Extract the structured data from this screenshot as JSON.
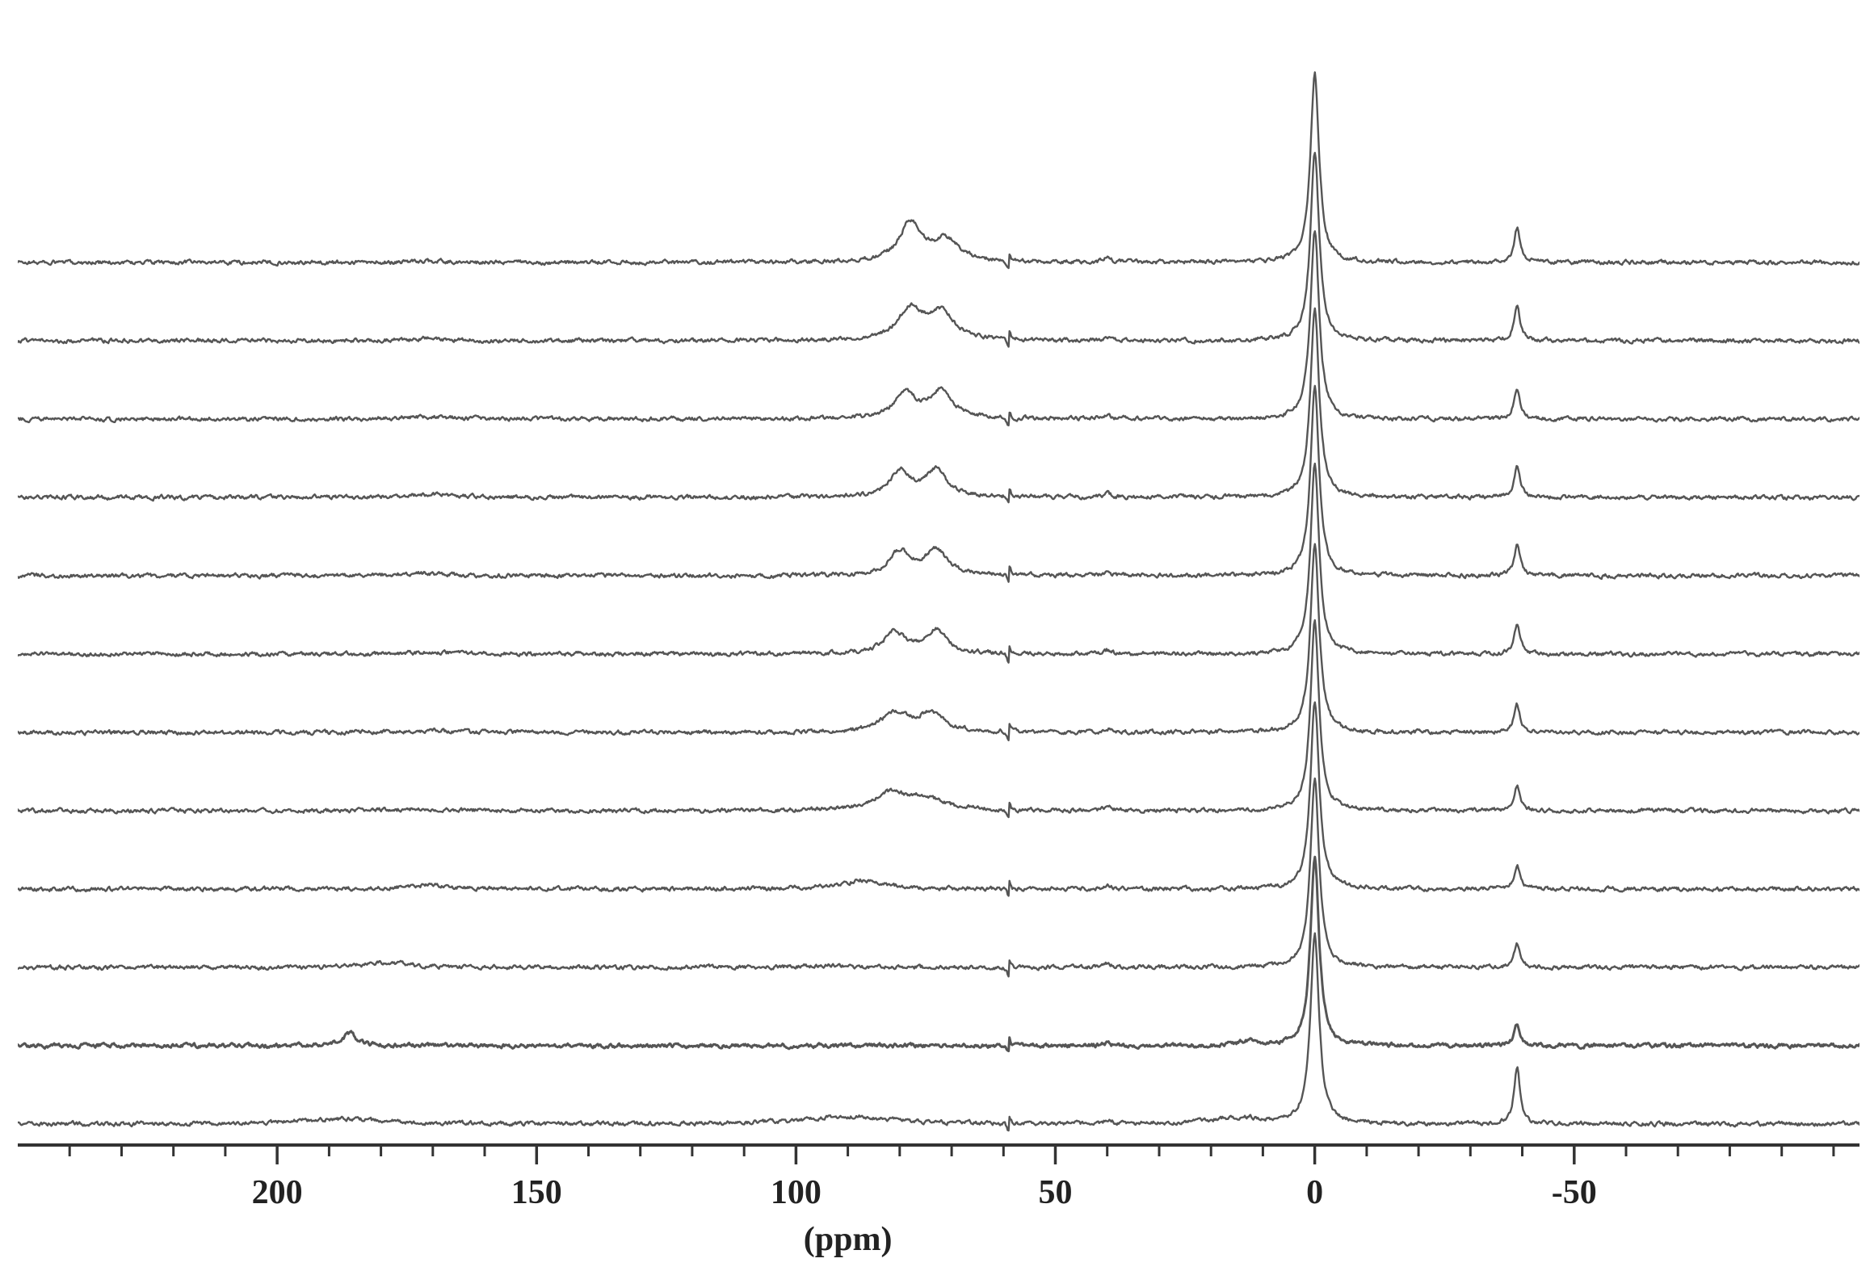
{
  "chart_data": {
    "type": "line",
    "title": "",
    "xlabel": "(ppm)",
    "ylabel": "",
    "xlim": [
      250,
      -105
    ],
    "x_reversed": true,
    "y_axis_visible": false,
    "grid": false,
    "legend": "none",
    "x_ticks": [
      {
        "value": 200,
        "label": "200"
      },
      {
        "value": 150,
        "label": "150"
      },
      {
        "value": 100,
        "label": "100"
      },
      {
        "value": 50,
        "label": "50"
      },
      {
        "value": 0,
        "label": "0"
      },
      {
        "value": -50,
        "label": "-50"
      }
    ],
    "minor_tick_step": 10,
    "reference_peaks_ppm": [
      0,
      -39,
      40,
      59
    ],
    "line_color": "#555555",
    "series": [
      {
        "peaks": [
          {
            "x": 0,
            "h": 3.0,
            "w": 1.0
          },
          {
            "x": -39,
            "h": 0.55,
            "w": 0.7
          },
          {
            "x": 78,
            "h": 0.62,
            "w": 2.5
          },
          {
            "x": 71,
            "h": 0.35,
            "w": 3.0
          },
          {
            "x": 171,
            "h": 0.02,
            "w": 4.0
          },
          {
            "x": 40,
            "h": 0.08,
            "w": 0.8
          }
        ]
      },
      {
        "peaks": [
          {
            "x": 0,
            "h": 3.0,
            "w": 1.0
          },
          {
            "x": -39,
            "h": 0.52,
            "w": 0.7
          },
          {
            "x": 78,
            "h": 0.48,
            "w": 3.0
          },
          {
            "x": 72,
            "h": 0.42,
            "w": 3.0
          },
          {
            "x": 171,
            "h": 0.03,
            "w": 5.0
          },
          {
            "x": 40,
            "h": 0.07,
            "w": 0.8
          }
        ]
      },
      {
        "peaks": [
          {
            "x": 0,
            "h": 3.0,
            "w": 1.0
          },
          {
            "x": -39,
            "h": 0.5,
            "w": 0.7
          },
          {
            "x": 79,
            "h": 0.42,
            "w": 2.5
          },
          {
            "x": 72,
            "h": 0.45,
            "w": 2.5
          },
          {
            "x": 172,
            "h": 0.04,
            "w": 5.0
          },
          {
            "x": 40,
            "h": 0.07,
            "w": 0.8
          }
        ]
      },
      {
        "peaks": [
          {
            "x": 0,
            "h": 3.0,
            "w": 1.0
          },
          {
            "x": -39,
            "h": 0.5,
            "w": 0.7
          },
          {
            "x": 80,
            "h": 0.4,
            "w": 2.5
          },
          {
            "x": 73,
            "h": 0.42,
            "w": 2.5
          },
          {
            "x": 170,
            "h": 0.05,
            "w": 5.0
          },
          {
            "x": 40,
            "h": 0.07,
            "w": 0.8
          }
        ]
      },
      {
        "peaks": [
          {
            "x": 0,
            "h": 3.0,
            "w": 1.0
          },
          {
            "x": -39,
            "h": 0.48,
            "w": 0.7
          },
          {
            "x": 80,
            "h": 0.38,
            "w": 2.5
          },
          {
            "x": 73,
            "h": 0.4,
            "w": 2.5
          },
          {
            "x": 172,
            "h": 0.04,
            "w": 5.0
          },
          {
            "x": 40,
            "h": 0.06,
            "w": 0.8
          }
        ]
      },
      {
        "peaks": [
          {
            "x": 0,
            "h": 3.0,
            "w": 1.0
          },
          {
            "x": -39,
            "h": 0.45,
            "w": 0.7
          },
          {
            "x": 81,
            "h": 0.35,
            "w": 2.5
          },
          {
            "x": 73,
            "h": 0.37,
            "w": 2.5
          },
          {
            "x": 171,
            "h": 0.03,
            "w": 5.0
          },
          {
            "x": 40,
            "h": 0.06,
            "w": 0.8
          }
        ]
      },
      {
        "peaks": [
          {
            "x": 0,
            "h": 3.0,
            "w": 1.0
          },
          {
            "x": -39,
            "h": 0.43,
            "w": 0.7
          },
          {
            "x": 81,
            "h": 0.3,
            "w": 3.0
          },
          {
            "x": 74,
            "h": 0.3,
            "w": 3.0
          },
          {
            "x": 171,
            "h": 0.03,
            "w": 5.0
          },
          {
            "x": 40,
            "h": 0.06,
            "w": 0.8
          }
        ]
      },
      {
        "peaks": [
          {
            "x": 0,
            "h": 3.0,
            "w": 1.0
          },
          {
            "x": -39,
            "h": 0.4,
            "w": 0.7
          },
          {
            "x": 82,
            "h": 0.27,
            "w": 4.0
          },
          {
            "x": 75,
            "h": 0.18,
            "w": 4.0
          },
          {
            "x": 172,
            "h": 0.03,
            "w": 5.0
          },
          {
            "x": 40,
            "h": 0.06,
            "w": 0.8
          }
        ]
      },
      {
        "peaks": [
          {
            "x": 0,
            "h": 3.0,
            "w": 1.0
          },
          {
            "x": -39,
            "h": 0.38,
            "w": 0.7
          },
          {
            "x": 87,
            "h": 0.14,
            "w": 5.0
          },
          {
            "x": 171,
            "h": 0.06,
            "w": 5.0
          },
          {
            "x": 40,
            "h": 0.05,
            "w": 0.8
          }
        ]
      },
      {
        "peaks": [
          {
            "x": 0,
            "h": 3.0,
            "w": 1.0
          },
          {
            "x": -39,
            "h": 0.36,
            "w": 0.7
          },
          {
            "x": 179,
            "h": 0.08,
            "w": 5.0
          },
          {
            "x": 95,
            "h": 0.03,
            "w": 6.0
          },
          {
            "x": 40,
            "h": 0.05,
            "w": 0.8
          }
        ]
      },
      {
        "peaks": [
          {
            "x": 0,
            "h": 3.0,
            "w": 1.0
          },
          {
            "x": -39,
            "h": 0.34,
            "w": 0.7
          },
          {
            "x": 186,
            "h": 0.2,
            "w": 1.5
          },
          {
            "x": 13,
            "h": 0.06,
            "w": 2.0
          },
          {
            "x": 40,
            "h": 0.04,
            "w": 0.8
          }
        ]
      },
      {
        "peaks": [
          {
            "x": 0,
            "h": 3.0,
            "w": 1.0
          },
          {
            "x": -39,
            "h": 0.9,
            "w": 0.7
          },
          {
            "x": 90,
            "h": 0.12,
            "w": 10.0
          },
          {
            "x": 188,
            "h": 0.08,
            "w": 10.0
          },
          {
            "x": 15,
            "h": 0.1,
            "w": 6.0
          },
          {
            "x": 40,
            "h": 0.05,
            "w": 0.8
          }
        ]
      }
    ]
  }
}
